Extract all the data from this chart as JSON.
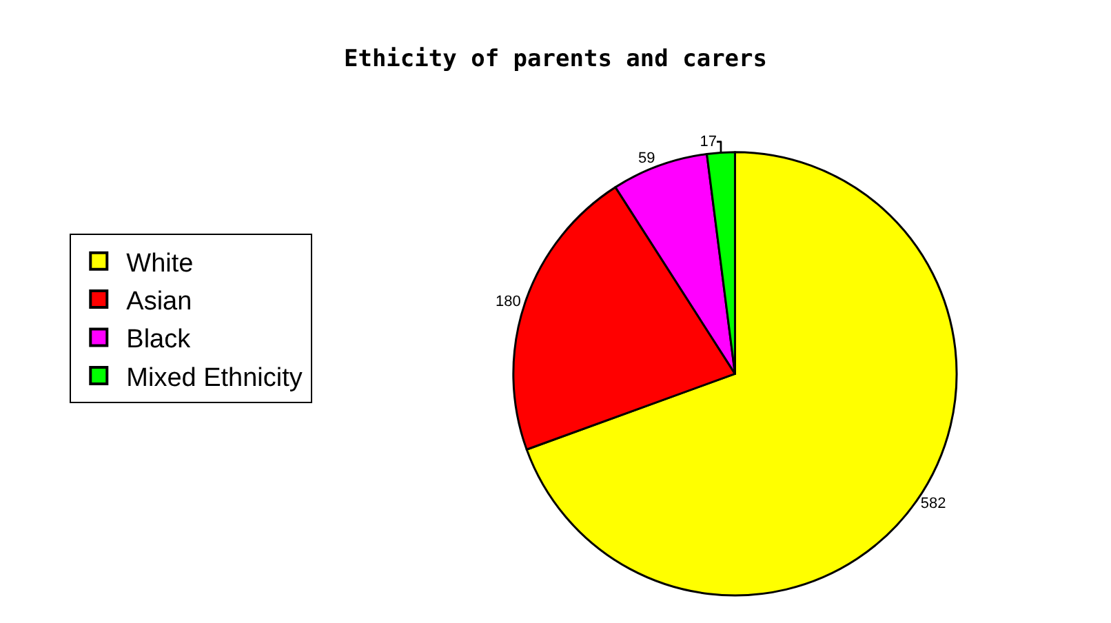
{
  "chart_data": {
    "type": "pie",
    "title": "Ethicity of parents and carers",
    "categories": [
      "White",
      "Asian",
      "Black",
      "Mixed Ethnicity"
    ],
    "values": [
      582,
      180,
      59,
      17
    ],
    "colors": [
      "#ffff00",
      "#ff0000",
      "#ff00ff",
      "#00ff00"
    ],
    "data_labels": true,
    "legend": "left"
  }
}
